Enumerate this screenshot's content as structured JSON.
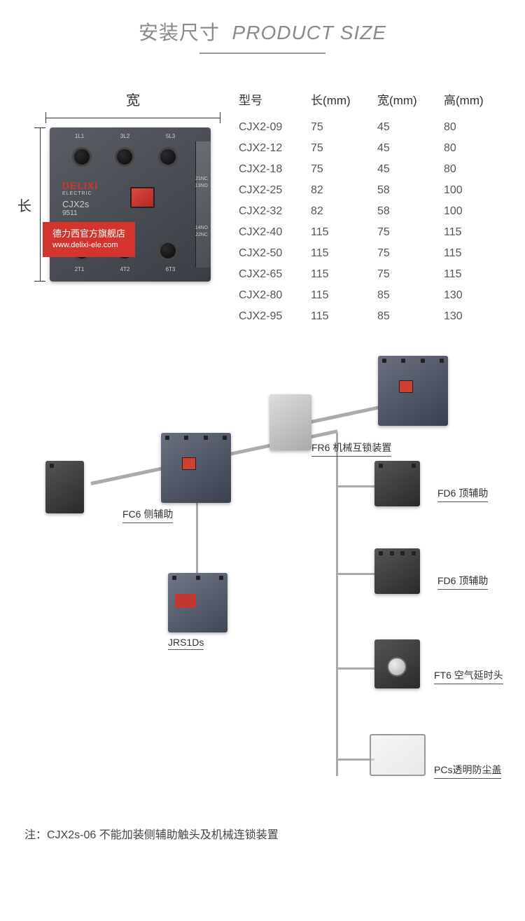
{
  "header": {
    "cn": "安装尺寸",
    "en": "PRODUCT SIZE"
  },
  "dims": {
    "width": "宽",
    "length": "长"
  },
  "photo": {
    "terms_top": [
      "1L1",
      "3L2",
      "5L3"
    ],
    "side_top": "21NC",
    "side_top2": "13NO",
    "side_bot": "14NO",
    "side_bot2": "22NC",
    "brand": "DELIXI",
    "brand_sub": "ELECTRIC",
    "model": "CJX2s",
    "model_num": "9511",
    "terms_bot": [
      "2T1",
      "4T2",
      "6T3"
    ]
  },
  "watermark": {
    "title": "德力西官方旗舰店",
    "url": "www.delixi-ele.com"
  },
  "table": {
    "cols": [
      "型号",
      "长(mm)",
      "宽(mm)",
      "高(mm)"
    ],
    "rows": [
      [
        "CJX2-09",
        "75",
        "45",
        "80"
      ],
      [
        "CJX2-12",
        "75",
        "45",
        "80"
      ],
      [
        "CJX2-18",
        "75",
        "45",
        "80"
      ],
      [
        "CJX2-25",
        "82",
        "58",
        "100"
      ],
      [
        "CJX2-32",
        "82",
        "58",
        "100"
      ],
      [
        "CJX2-40",
        "115",
        "75",
        "115"
      ],
      [
        "CJX2-50",
        "115",
        "75",
        "115"
      ],
      [
        "CJX2-65",
        "115",
        "75",
        "115"
      ],
      [
        "CJX2-80",
        "115",
        "85",
        "130"
      ],
      [
        "CJX2-95",
        "115",
        "85",
        "130"
      ]
    ]
  },
  "diagram": {
    "fc6": "FC6 侧辅助",
    "fr6": "FR6 机械互锁装置",
    "jrs": "JRS1Ds",
    "fd6": "FD6 顶辅助",
    "ft6": "FT6 空气延时头",
    "pcs": "PCs透明防尘盖"
  },
  "foot": "注：CJX2s-06 不能加装侧辅助触头及机械连锁装置"
}
